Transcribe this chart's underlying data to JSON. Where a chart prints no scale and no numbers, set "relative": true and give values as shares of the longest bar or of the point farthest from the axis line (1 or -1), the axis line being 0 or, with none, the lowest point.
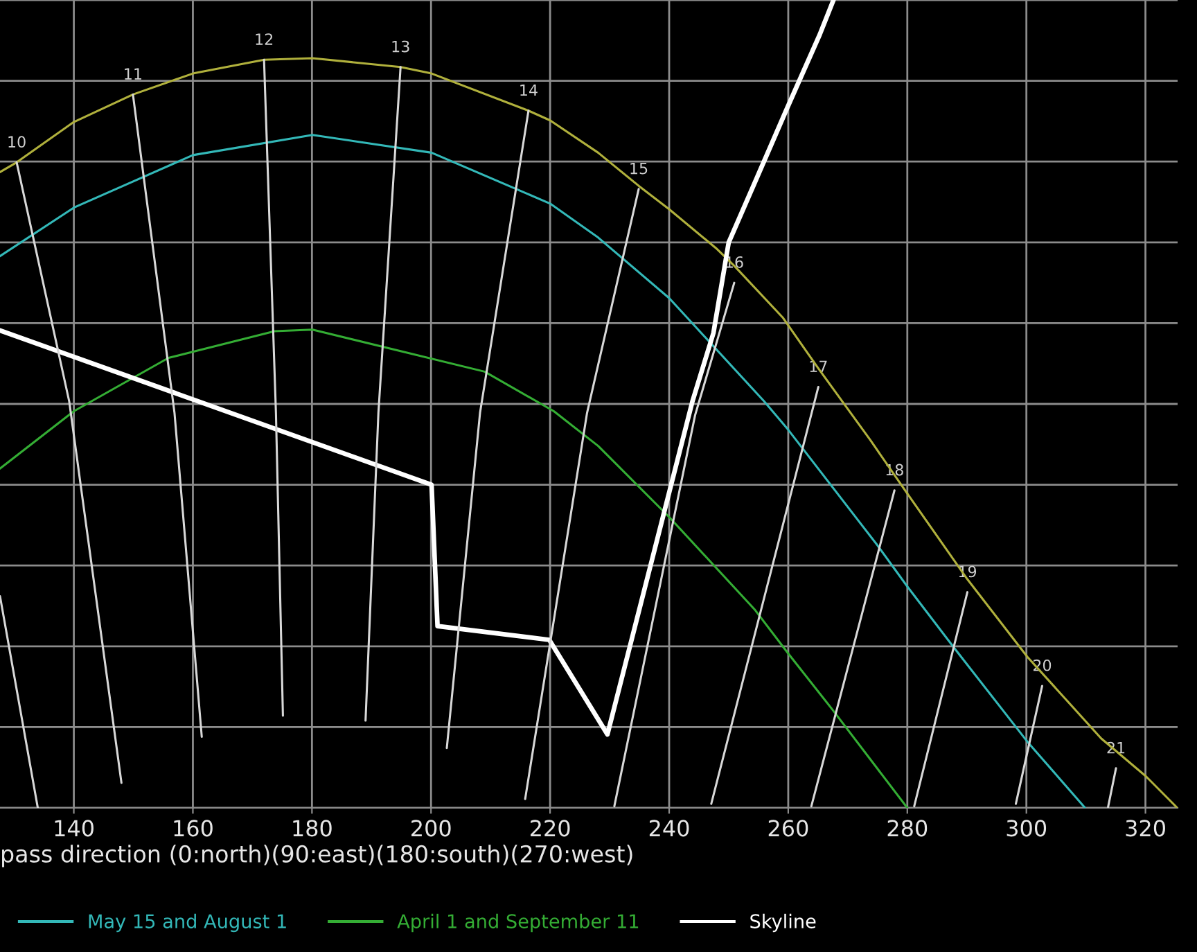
{
  "chart_data": {
    "type": "line",
    "xlabel": "pass direction (0:north)(90:east)(180:south)(270:west)",
    "relative": true,
    "xlim": [
      127.6,
      325.4
    ],
    "xticks": [
      140,
      160,
      180,
      200,
      220,
      240,
      260,
      280,
      300,
      320
    ],
    "grid": true,
    "legend": "bottom",
    "line_style": "solid",
    "series": [
      {
        "color": "#b0b03c",
        "x": [
          127.6,
          130.4,
          140,
          149.93,
          160,
          171.95,
          180.09,
          194.88,
          200.09,
          216.37,
          220,
          228.07,
          234.88,
          240,
          247.84,
          250.93,
          259.07,
          265.05,
          273.81,
          280,
          290.09,
          300.16,
          312.56,
          320.09,
          325.35
        ],
        "values": [
          0.787,
          0.799,
          0.849,
          0.883,
          0.909,
          0.926,
          0.928,
          0.917,
          0.909,
          0.863,
          0.851,
          0.811,
          0.77,
          0.741,
          0.693,
          0.671,
          0.607,
          0.544,
          0.455,
          0.389,
          0.283,
          0.187,
          0.086,
          0.039,
          0.0
        ]
      },
      {
        "name": "May 15 and August 1",
        "color": "#33b8b8",
        "x": [
          127.6,
          140,
          160,
          180.09,
          200.09,
          220,
          228.07,
          240,
          255.98,
          260,
          274.98,
          280,
          287.77,
          300.16,
          309.86
        ],
        "values": [
          0.683,
          0.743,
          0.808,
          0.833,
          0.811,
          0.748,
          0.706,
          0.631,
          0.503,
          0.468,
          0.325,
          0.274,
          0.199,
          0.082,
          0.0
        ]
      },
      {
        "name": "April 1 and September 11",
        "color": "#34ad34",
        "x": [
          127.6,
          140,
          155.91,
          173.72,
          180.09,
          209.0,
          220.63,
          228.07,
          240,
          254.42,
          260,
          267.6,
          280
        ],
        "values": [
          0.42,
          0.491,
          0.557,
          0.59,
          0.592,
          0.54,
          0.491,
          0.448,
          0.36,
          0.245,
          0.191,
          0.12,
          0.0
        ]
      },
      {
        "name": "Skyline",
        "color": "#ffffff",
        "x": [
          127.6,
          200.09,
          201.09,
          219.86,
          229.63,
          243.9,
          247.44,
          250.0,
          255.21,
          259.86,
          265.28,
          267.6
        ],
        "values": [
          0.591,
          0.4,
          0.225,
          0.208,
          0.091,
          0.503,
          0.588,
          0.7,
          0.788,
          0.867,
          0.957,
          1.0
        ]
      },
      {
        "color": "#d8d8d8",
        "x": [
          127.6,
          133.95
        ],
        "values": [
          0.262,
          0.0
        ]
      },
      {
        "color": "#d8d8d8",
        "x": [
          130.4,
          139.23,
          148.0
        ],
        "values": [
          0.799,
          0.503,
          0.031
        ]
      },
      {
        "color": "#d8d8d8",
        "x": [
          149.93,
          156.91,
          161.49
        ],
        "values": [
          0.883,
          0.489,
          0.088
        ]
      },
      {
        "color": "#d8d8d8",
        "x": [
          171.95,
          173.95,
          175.12
        ],
        "values": [
          0.926,
          0.489,
          0.114
        ]
      },
      {
        "color": "#d8d8d8",
        "x": [
          194.88,
          191.16,
          189.0
        ],
        "values": [
          0.917,
          0.489,
          0.108
        ]
      },
      {
        "color": "#d8d8d8",
        "x": [
          216.37,
          208.23,
          202.65
        ],
        "values": [
          0.863,
          0.489,
          0.074
        ]
      },
      {
        "color": "#d8d8d8",
        "x": [
          234.88,
          226.21,
          215.81
        ],
        "values": [
          0.766,
          0.489,
          0.011
        ]
      },
      {
        "color": "#d8d8d8",
        "x": [
          250.93,
          244.35,
          230.79
        ],
        "values": [
          0.65,
          0.486,
          0.002
        ]
      },
      {
        "color": "#d8d8d8",
        "x": [
          265.05,
          247.07
        ],
        "values": [
          0.521,
          0.005
        ]
      },
      {
        "color": "#d8d8d8",
        "x": [
          277.84,
          263.88
        ],
        "values": [
          0.393,
          0.002
        ]
      },
      {
        "color": "#d8d8d8",
        "x": [
          290.09,
          281.16
        ],
        "values": [
          0.267,
          0.002
        ]
      },
      {
        "color": "#d8d8d8",
        "x": [
          302.65,
          298.23
        ],
        "values": [
          0.151,
          0.005
        ]
      },
      {
        "color": "#d8d8d8",
        "x": [
          315.05,
          313.72
        ],
        "values": [
          0.049,
          0.001
        ]
      }
    ],
    "annotations": [
      {
        "text": "10",
        "x": 130.4,
        "y": 0.799
      },
      {
        "text": "11",
        "x": 149.93,
        "y": 0.883
      },
      {
        "text": "12",
        "x": 171.95,
        "y": 0.926
      },
      {
        "text": "13",
        "x": 194.88,
        "y": 0.917
      },
      {
        "text": "14",
        "x": 216.37,
        "y": 0.863
      },
      {
        "text": "15",
        "x": 234.88,
        "y": 0.766
      },
      {
        "text": "16",
        "x": 250.93,
        "y": 0.65
      },
      {
        "text": "17",
        "x": 265.05,
        "y": 0.521
      },
      {
        "text": "18",
        "x": 277.84,
        "y": 0.393
      },
      {
        "text": "19",
        "x": 290.09,
        "y": 0.267
      },
      {
        "text": "20",
        "x": 302.65,
        "y": 0.151
      },
      {
        "text": "21",
        "x": 315.05,
        "y": 0.049
      }
    ]
  }
}
